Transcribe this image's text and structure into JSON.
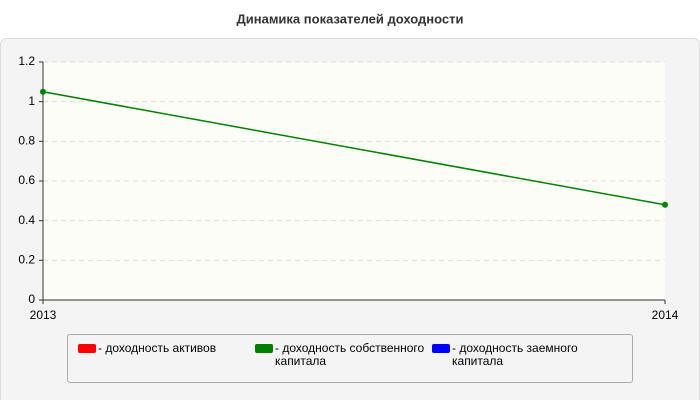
{
  "chart_data": {
    "type": "line",
    "title": "Динамика показателей доходности",
    "categories": [
      "2013",
      "2014"
    ],
    "series": [
      {
        "name": "доходность активов",
        "color": "#ff0000",
        "values": [
          null,
          null
        ]
      },
      {
        "name": "доходность собственного капитала",
        "color": "#008000",
        "values": [
          1.05,
          0.48
        ]
      },
      {
        "name": "доходность заемного капитала",
        "color": "#0000ff",
        "values": [
          null,
          null
        ]
      }
    ],
    "ylim": [
      0,
      1.2
    ],
    "yticks": [
      0,
      0.2,
      0.4,
      0.6,
      0.8,
      1,
      1.2
    ],
    "grid": true,
    "legend": "bottom"
  }
}
